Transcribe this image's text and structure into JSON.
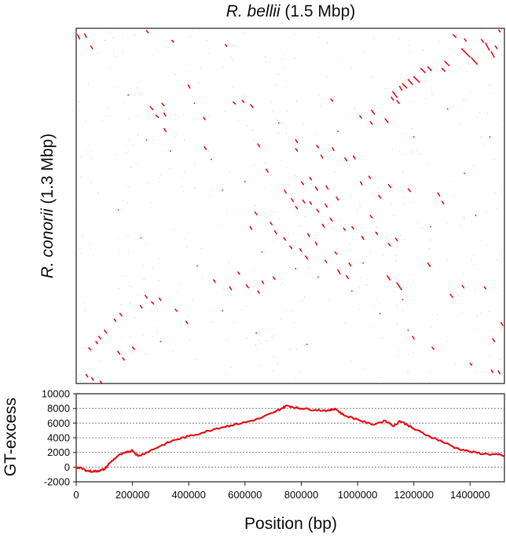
{
  "chart_data": [
    {
      "type": "scatter",
      "title_italic": "R. bellii",
      "title_rest": " (1.5 Mbp)",
      "ylabel_italic": "R. conorii",
      "ylabel_rest": " (1.3 Mbp)",
      "xlim": [
        0,
        1522000
      ],
      "ylim": [
        0,
        1268000
      ],
      "mark_color": "#e8141b",
      "segments": [
        [
          5000,
          1245000,
          12000,
          1230000
        ],
        [
          30000,
          1248000,
          36000,
          1236000
        ],
        [
          52000,
          1205000,
          58000,
          1195000
        ],
        [
          250000,
          1260000,
          256000,
          1252000
        ],
        [
          340000,
          1225000,
          346000,
          1219000
        ],
        [
          530000,
          1210000,
          535000,
          1204000
        ],
        [
          1370000,
          1195000,
          1400000,
          1165000
        ],
        [
          1405000,
          1162000,
          1425000,
          1140000
        ],
        [
          1310000,
          1150000,
          1325000,
          1135000
        ],
        [
          1300000,
          1125000,
          1310000,
          1115000
        ],
        [
          1250000,
          1130000,
          1262000,
          1118000
        ],
        [
          1225000,
          1125000,
          1240000,
          1110000
        ],
        [
          1200000,
          1095000,
          1220000,
          1075000
        ],
        [
          1180000,
          1085000,
          1195000,
          1068000
        ],
        [
          1160000,
          1070000,
          1175000,
          1055000
        ],
        [
          1150000,
          1060000,
          1157000,
          1048000
        ],
        [
          1130000,
          1035000,
          1140000,
          1022000
        ],
        [
          1120000,
          1022000,
          1127000,
          1012000
        ],
        [
          1140000,
          1010000,
          1148000,
          1000000
        ],
        [
          1455000,
          1215000,
          1468000,
          1190000
        ],
        [
          1475000,
          1185000,
          1485000,
          1165000
        ],
        [
          1440000,
          1228000,
          1448000,
          1218000
        ],
        [
          1490000,
          1205000,
          1496000,
          1195000
        ],
        [
          1380000,
          1230000,
          1386000,
          1222000
        ],
        [
          1340000,
          1245000,
          1350000,
          1236000
        ],
        [
          1502000,
          1262000,
          1507000,
          1255000
        ],
        [
          263000,
          988000,
          272000,
          978000
        ],
        [
          283000,
          958000,
          292000,
          950000
        ],
        [
          312000,
          965000,
          318000,
          955000
        ],
        [
          398000,
          1065000,
          404000,
          1055000
        ],
        [
          452000,
          950000,
          458000,
          942000
        ],
        [
          305000,
          1000000,
          312000,
          992000
        ],
        [
          558000,
          1005000,
          566000,
          998000
        ],
        [
          620000,
          995000,
          628000,
          985000
        ],
        [
          590000,
          1010000,
          596000,
          1004000
        ],
        [
          1050000,
          975000,
          1060000,
          962000
        ],
        [
          1045000,
          935000,
          1052000,
          926000
        ],
        [
          1008000,
          955000,
          1014000,
          948000
        ],
        [
          1098000,
          945000,
          1108000,
          932000
        ],
        [
          1125000,
          1042000,
          1132000,
          1034000
        ],
        [
          905000,
          1015000,
          912000,
          1008000
        ],
        [
          312000,
          910000,
          319000,
          900000
        ],
        [
          455000,
          845000,
          462000,
          836000
        ],
        [
          645000,
          855000,
          652000,
          845000
        ],
        [
          780000,
          870000,
          786000,
          860000
        ],
        [
          855000,
          850000,
          861000,
          842000
        ],
        [
          910000,
          842000,
          916000,
          832000
        ],
        [
          955000,
          805000,
          962000,
          795000
        ],
        [
          985000,
          812000,
          991000,
          802000
        ],
        [
          870000,
          815000,
          876000,
          805000
        ],
        [
          780000,
          838000,
          786000,
          830000
        ],
        [
          675000,
          765000,
          682000,
          755000
        ],
        [
          800000,
          720000,
          808000,
          710000
        ],
        [
          830000,
          735000,
          836000,
          727000
        ],
        [
          850000,
          702000,
          858000,
          690000
        ],
        [
          888000,
          705000,
          895000,
          695000
        ],
        [
          740000,
          690000,
          746000,
          680000
        ],
        [
          765000,
          660000,
          772000,
          650000
        ],
        [
          805000,
          655000,
          812000,
          645000
        ],
        [
          830000,
          648000,
          836000,
          640000
        ],
        [
          855000,
          622000,
          862000,
          612000
        ],
        [
          885000,
          640000,
          892000,
          630000
        ],
        [
          780000,
          632000,
          786000,
          624000
        ],
        [
          925000,
          665000,
          932000,
          655000
        ],
        [
          1010000,
          720000,
          1016000,
          710000
        ],
        [
          1040000,
          740000,
          1046000,
          732000
        ],
        [
          1110000,
          710000,
          1118000,
          700000
        ],
        [
          1075000,
          672000,
          1082000,
          662000
        ],
        [
          1180000,
          695000,
          1188000,
          685000
        ],
        [
          1285000,
          680000,
          1292000,
          670000
        ],
        [
          1300000,
          650000,
          1306000,
          642000
        ],
        [
          635000,
          612000,
          642000,
          603000
        ],
        [
          618000,
          560000,
          624000,
          550000
        ],
        [
          690000,
          575000,
          696000,
          567000
        ],
        [
          705000,
          545000,
          712000,
          535000
        ],
        [
          738000,
          520000,
          744000,
          512000
        ],
        [
          760000,
          490000,
          766000,
          482000
        ],
        [
          795000,
          480000,
          801000,
          472000
        ],
        [
          823000,
          535000,
          829000,
          525000
        ],
        [
          850000,
          505000,
          856000,
          495000
        ],
        [
          815000,
          455000,
          822000,
          445000
        ],
        [
          875000,
          568000,
          882000,
          558000
        ],
        [
          903000,
          590000,
          910000,
          580000
        ],
        [
          950000,
          555000,
          956000,
          547000
        ],
        [
          980000,
          560000,
          986000,
          552000
        ],
        [
          1045000,
          600000,
          1052000,
          592000
        ],
        [
          1015000,
          525000,
          1022000,
          515000
        ],
        [
          1065000,
          540000,
          1071000,
          532000
        ],
        [
          1110000,
          500000,
          1116000,
          492000
        ],
        [
          1135000,
          518000,
          1142000,
          510000
        ],
        [
          920000,
          470000,
          926000,
          462000
        ],
        [
          885000,
          440000,
          890000,
          432000
        ],
        [
          930000,
          405000,
          938000,
          392000
        ],
        [
          960000,
          385000,
          967000,
          375000
        ],
        [
          970000,
          430000,
          976000,
          420000
        ],
        [
          1105000,
          385000,
          1115000,
          370000
        ],
        [
          1140000,
          360000,
          1156000,
          335000
        ],
        [
          1250000,
          430000,
          1258000,
          418000
        ],
        [
          1330000,
          318000,
          1338000,
          308000
        ],
        [
          1372000,
          350000,
          1378000,
          342000
        ],
        [
          1450000,
          345000,
          1456000,
          338000
        ],
        [
          1510000,
          218000,
          1516000,
          208000
        ],
        [
          1480000,
          160000,
          1487000,
          150000
        ],
        [
          1500000,
          45000,
          1506000,
          35000
        ],
        [
          1475000,
          48000,
          1481000,
          40000
        ],
        [
          1400000,
          72000,
          1406000,
          66000
        ],
        [
          245000,
          315000,
          252000,
          305000
        ],
        [
          268000,
          292000,
          275000,
          284000
        ],
        [
          295000,
          305000,
          301000,
          297000
        ],
        [
          228000,
          278000,
          234000,
          270000
        ],
        [
          390000,
          222000,
          396000,
          214000
        ],
        [
          352000,
          265000,
          358000,
          258000
        ],
        [
          155000,
          250000,
          162000,
          242000
        ],
        [
          135000,
          230000,
          141000,
          222000
        ],
        [
          100000,
          190000,
          108000,
          180000
        ],
        [
          80000,
          168000,
          87000,
          160000
        ],
        [
          70000,
          150000,
          76000,
          142000
        ],
        [
          45000,
          128000,
          51000,
          120000
        ],
        [
          148000,
          115000,
          155000,
          105000
        ],
        [
          165000,
          92000,
          171000,
          84000
        ],
        [
          200000,
          130000,
          207000,
          122000
        ],
        [
          35000,
          32000,
          41000,
          24000
        ],
        [
          55000,
          20000,
          61000,
          12000
        ],
        [
          85000,
          8000,
          90000,
          2000
        ],
        [
          488000,
          370000,
          494000,
          362000
        ],
        [
          545000,
          345000,
          552000,
          335000
        ],
        [
          575000,
          398000,
          581000,
          390000
        ],
        [
          605000,
          352000,
          612000,
          342000
        ],
        [
          645000,
          330000,
          651000,
          322000
        ],
        [
          660000,
          365000,
          666000,
          357000
        ],
        [
          700000,
          380000,
          706000,
          372000
        ],
        [
          1195000,
          168000,
          1201000,
          160000
        ],
        [
          1265000,
          130000,
          1271000,
          122000
        ]
      ],
      "dots": [
        [
          185000,
          1030000
        ],
        [
          420000,
          1000000
        ],
        [
          250000,
          870000
        ],
        [
          335000,
          830000
        ],
        [
          520000,
          690000
        ],
        [
          480000,
          800000
        ],
        [
          600000,
          720000
        ],
        [
          720000,
          930000
        ],
        [
          1200000,
          880000
        ],
        [
          1380000,
          750000
        ],
        [
          1420000,
          600000
        ],
        [
          1260000,
          560000
        ],
        [
          980000,
          330000
        ],
        [
          1080000,
          250000
        ],
        [
          1180000,
          190000
        ],
        [
          430000,
          420000
        ],
        [
          520000,
          260000
        ],
        [
          300000,
          150000
        ],
        [
          640000,
          180000
        ],
        [
          820000,
          140000
        ],
        [
          930000,
          900000
        ],
        [
          1320000,
          980000
        ],
        [
          1470000,
          880000
        ],
        [
          150000,
          620000
        ],
        [
          230000,
          520000
        ],
        [
          660000,
          470000
        ],
        [
          780000,
          410000
        ],
        [
          860000,
          380000
        ],
        [
          1020000,
          430000
        ],
        [
          1160000,
          300000
        ]
      ]
    },
    {
      "type": "line",
      "ylabel": "GT-excess",
      "xlabel": "Position (bp)",
      "xlim": [
        0,
        1522000
      ],
      "ylim": [
        -2000,
        10000
      ],
      "xticks": [
        0,
        200000,
        400000,
        600000,
        800000,
        1000000,
        1200000,
        1400000
      ],
      "xtick_labels": [
        "0",
        "200000",
        "400000",
        "600000",
        "800000",
        "1000000",
        "1200000",
        "1400000"
      ],
      "yticks": [
        -2000,
        0,
        2000,
        4000,
        6000,
        8000,
        10000
      ],
      "ytick_labels": [
        "-2000",
        "0",
        "2000",
        "4000",
        "6000",
        "8000",
        "10000"
      ],
      "grid": "horizontal dotted",
      "line_color": "#e8141b",
      "x": [
        0,
        20000,
        40000,
        60000,
        80000,
        100000,
        120000,
        150000,
        180000,
        200000,
        220000,
        250000,
        300000,
        350000,
        400000,
        450000,
        500000,
        550000,
        600000,
        650000,
        700000,
        730000,
        750000,
        780000,
        800000,
        850000,
        900000,
        920000,
        950000,
        1000000,
        1050000,
        1100000,
        1130000,
        1150000,
        1180000,
        1200000,
        1250000,
        1300000,
        1350000,
        1400000,
        1450000,
        1500000,
        1522000
      ],
      "y": [
        0,
        -200,
        -500,
        -600,
        -500,
        -300,
        600,
        1600,
        2000,
        2300,
        1500,
        2000,
        2900,
        3700,
        4200,
        4700,
        5300,
        5700,
        6100,
        6600,
        7400,
        8000,
        8400,
        8100,
        8000,
        7800,
        7700,
        8000,
        7100,
        6500,
        5800,
        6300,
        5600,
        6300,
        5700,
        5200,
        4300,
        3500,
        2600,
        2100,
        1800,
        1700,
        1500
      ]
    }
  ]
}
